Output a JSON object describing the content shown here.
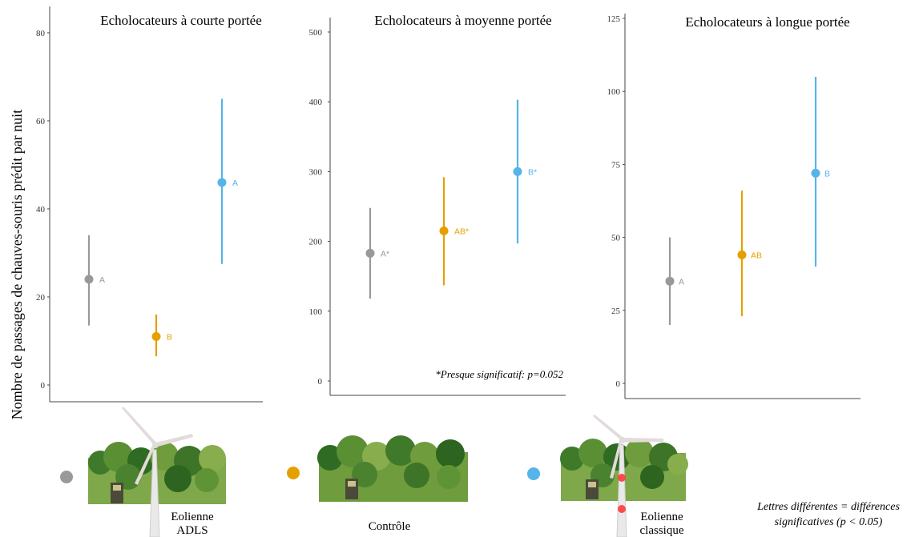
{
  "figure": {
    "ylabel": "Nombre de passages de chauves-souris prédit par nuit",
    "footnote": "*Presque significatif: p=0.052",
    "legend_note_line1": "Lettres différentes = différences",
    "legend_note_line2": "significatives (p < 0.05)",
    "legend": [
      {
        "color": "#999999",
        "line1": "Eolienne",
        "line2": "ADLS",
        "icon": "wind-turbine-adls-icon"
      },
      {
        "color": "#E69F00",
        "line1": "Contrôle",
        "line2": "",
        "icon": "forest-control-icon"
      },
      {
        "color": "#56B4E9",
        "line1": "Eolienne",
        "line2": "classique",
        "icon": "wind-turbine-classic-icon"
      }
    ]
  },
  "chart_data": [
    {
      "type": "scatter",
      "title": "Echolocateurs à courte portée",
      "ylim": [
        0,
        80
      ],
      "yticks": [
        0,
        20,
        40,
        60,
        80
      ],
      "series": [
        {
          "name": "Eolienne ADLS",
          "color": "#999999",
          "mean": 24,
          "lower": 13.5,
          "upper": 34,
          "letter": "A"
        },
        {
          "name": "Contrôle",
          "color": "#E69F00",
          "mean": 11,
          "lower": 6.5,
          "upper": 16,
          "letter": "B"
        },
        {
          "name": "Eolienne classique",
          "color": "#56B4E9",
          "mean": 46,
          "lower": 27.5,
          "upper": 65,
          "letter": "A"
        }
      ]
    },
    {
      "type": "scatter",
      "title": "Echolocateurs à moyenne portée",
      "ylim": [
        0,
        500
      ],
      "yticks": [
        0,
        100,
        200,
        300,
        400,
        500
      ],
      "yticklabels": [
        "0",
        "100",
        "200",
        "300",
        "400",
        "500"
      ],
      "series": [
        {
          "name": "Eolienne ADLS",
          "color": "#999999",
          "mean": 183,
          "lower": 118,
          "upper": 248,
          "letter": "A*"
        },
        {
          "name": "Contrôle",
          "color": "#E69F00",
          "mean": 215,
          "lower": 137,
          "upper": 292,
          "letter": "AB*"
        },
        {
          "name": "Eolienne classique",
          "color": "#56B4E9",
          "mean": 300,
          "lower": 197,
          "upper": 403,
          "letter": "B*"
        }
      ]
    },
    {
      "type": "scatter",
      "title": "Echolocateurs à longue portée",
      "ylim": [
        0,
        125
      ],
      "yticks": [
        0,
        25,
        50,
        75,
        100,
        125
      ],
      "series": [
        {
          "name": "Eolienne ADLS",
          "color": "#999999",
          "mean": 35,
          "lower": 20,
          "upper": 50,
          "letter": "A"
        },
        {
          "name": "Contrôle",
          "color": "#E69F00",
          "mean": 44,
          "lower": 23,
          "upper": 66,
          "letter": "AB"
        },
        {
          "name": "Eolienne classique",
          "color": "#56B4E9",
          "mean": 72,
          "lower": 40,
          "upper": 105,
          "letter": "B"
        }
      ]
    }
  ]
}
